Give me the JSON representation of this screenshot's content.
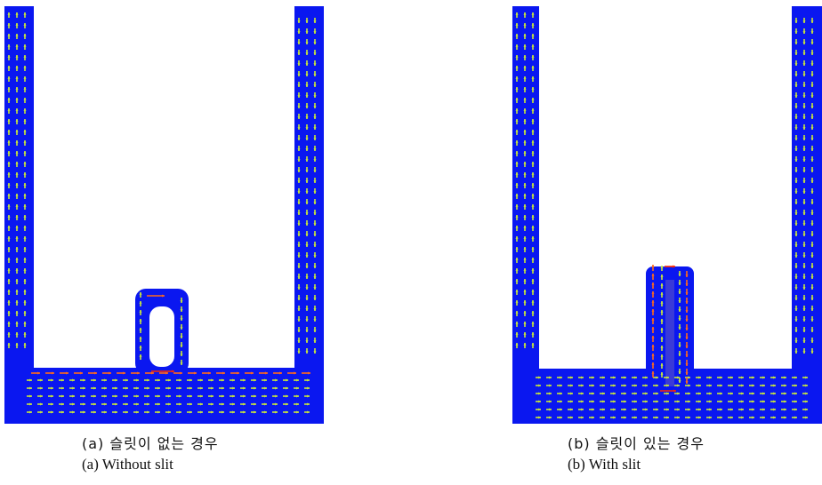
{
  "figure": {
    "panel_a": {
      "caption_korean": "(a) 슬릿이 없는 경우",
      "caption_english": "(a) Without slit"
    },
    "panel_b": {
      "caption_korean": "(b) 슬릿이 있는 경우",
      "caption_english": "(b) With slit"
    }
  },
  "colors": {
    "core": "#0a17f0",
    "arrow_field": "#c9e83a",
    "arrow_strong": "#ff6a1a",
    "arrow_peak": "#ff2a00"
  }
}
